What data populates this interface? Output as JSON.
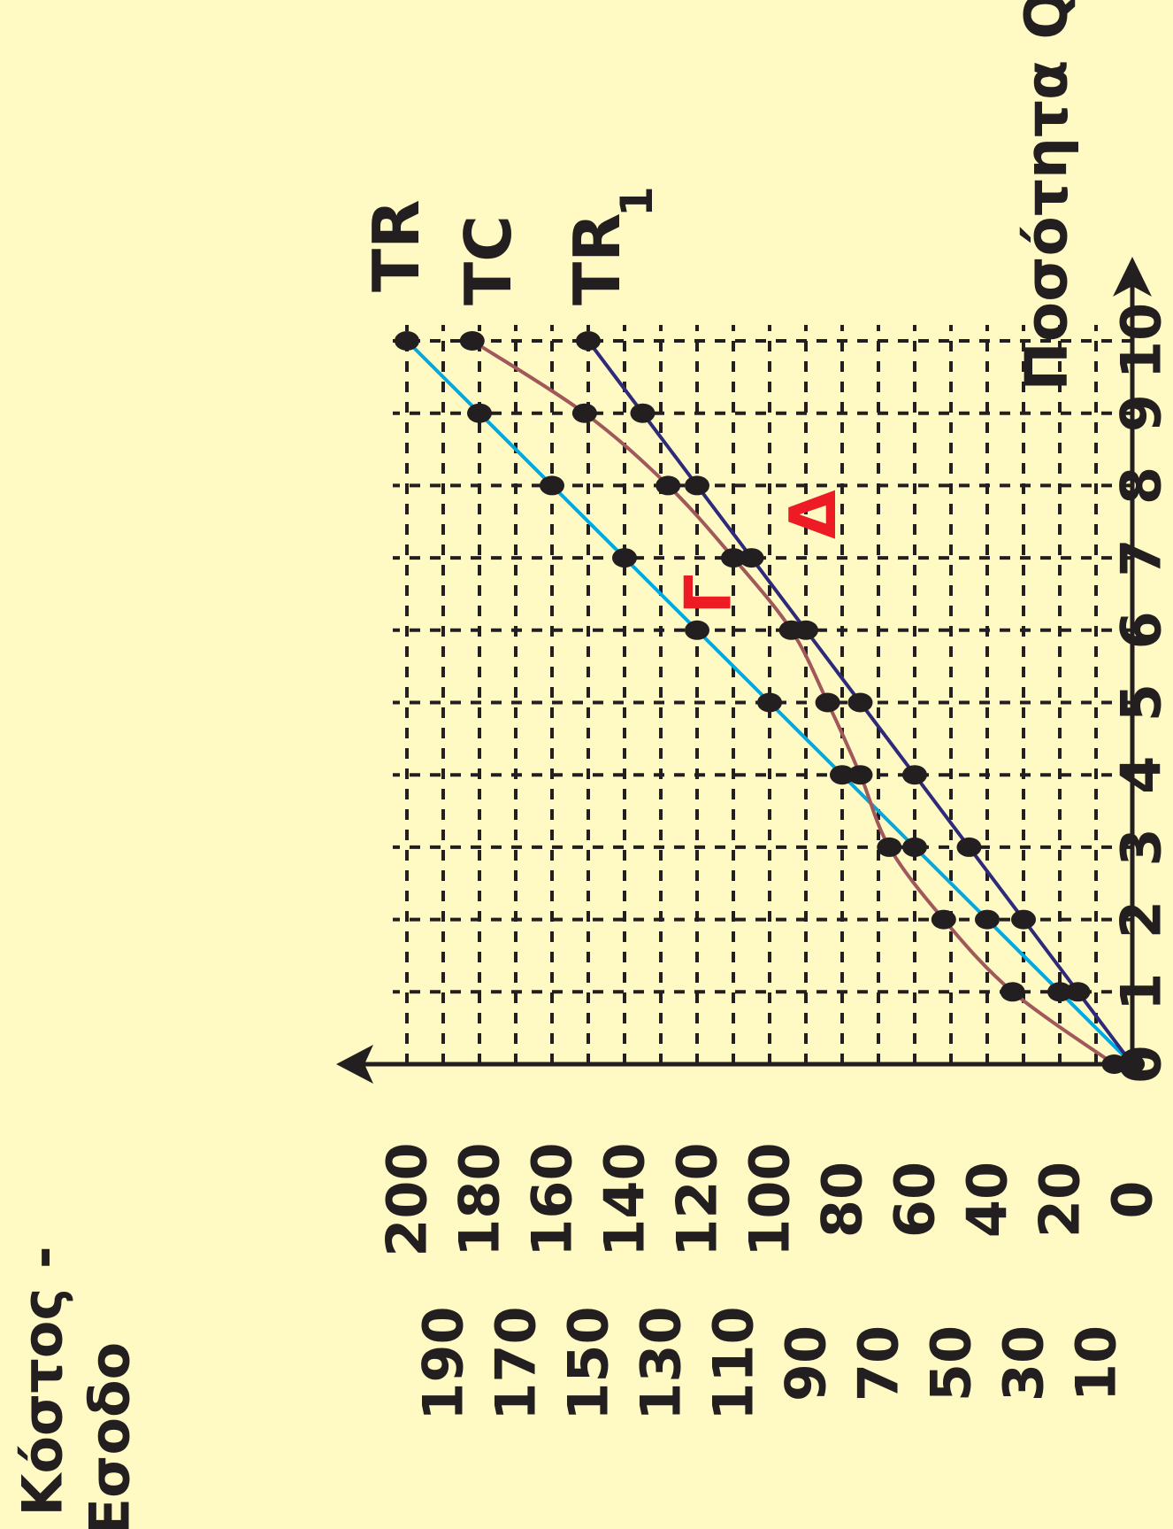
{
  "chart_data": {
    "type": "line",
    "rotation": "counter-clockwise 90deg",
    "x_axis": {
      "label": "Ποσότητα Q",
      "ticks": [
        "0",
        "1",
        "2",
        "3",
        "4",
        "5",
        "6",
        "7",
        "8",
        "9",
        "10"
      ],
      "range": [
        0,
        10
      ]
    },
    "y_axis": {
      "label_line1": "Κόστος -",
      "label_line2": "Έσοδο",
      "ticks_even": [
        "0",
        "20",
        "40",
        "60",
        "80",
        "100",
        "120",
        "140",
        "160",
        "180",
        "200"
      ],
      "ticks_odd": [
        "10",
        "30",
        "50",
        "70",
        "90",
        "110",
        "130",
        "150",
        "170",
        "190"
      ],
      "range": [
        0,
        200
      ]
    },
    "grid": true,
    "series": [
      {
        "name": "TR",
        "color": "#00a9e0",
        "x": [
          0,
          1,
          2,
          3,
          4,
          5,
          6,
          7,
          8,
          9,
          10
        ],
        "y": [
          0,
          20,
          40,
          60,
          80,
          100,
          120,
          140,
          160,
          180,
          200
        ]
      },
      {
        "name": "TC",
        "color": "#a0585a",
        "x": [
          0,
          1,
          2,
          3,
          4,
          5,
          6,
          7,
          8,
          9,
          10
        ],
        "y": [
          5,
          33,
          52,
          67,
          75,
          84,
          94,
          110,
          128,
          151,
          182
        ]
      },
      {
        "name": "TR",
        "subscript": "1",
        "color": "#2e2a7a",
        "x": [
          0,
          1,
          2,
          3,
          4,
          5,
          6,
          7,
          8,
          9,
          10
        ],
        "y": [
          0,
          15,
          30,
          45,
          60,
          75,
          90,
          105,
          120,
          135,
          150
        ]
      }
    ],
    "annotations": [
      {
        "text": "Γ",
        "color": "#ed1c24",
        "x": 6.5,
        "y": 117
      },
      {
        "text": "Δ",
        "color": "#ed1c24",
        "x": 7.6,
        "y": 88
      }
    ]
  }
}
